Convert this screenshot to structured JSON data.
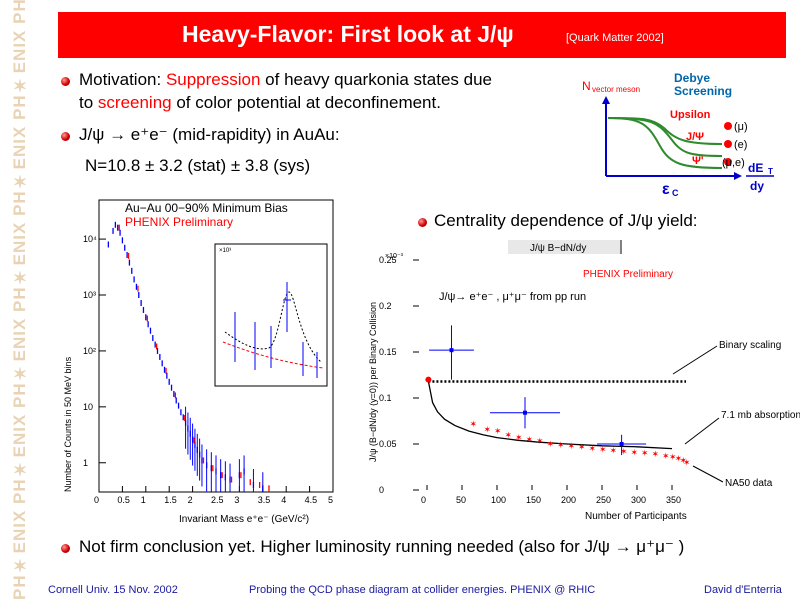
{
  "watermark": "PH✶ENIX PH✶ENIX PH✶ENIX PH✶ENIX PH✶ENIX PH✶ENIX PH✶ENIX",
  "title": "Heavy-Flavor: First look at J/ψ",
  "title_ref": "[Quark Matter 2002]",
  "bullets": {
    "b1_prefix": "Motivation: ",
    "b1_red1": "Suppression",
    "b1_mid": " of heavy quarkonia states due",
    "b1_line2_pre": "to ",
    "b1_red2": "screening",
    "b1_line2_post": " of color potential at deconfinement.",
    "b2": "J/ψ → e⁺e⁻  (mid-rapidity) in AuAu:",
    "b2_value": "N=10.8 ± 3.2 (stat) ± 3.8 (sys)",
    "b3": "Centrality dependence of J/ψ yield:",
    "b4": "Not firm conclusion yet. Higher luminosity running needed (also for J/ψ → μ⁺μ⁻ )"
  },
  "footer": {
    "left": "Cornell Univ. 15 Nov.  2002",
    "center": "Probing the QCD phase diagram at collider energies. PHENIX @ RHIC",
    "right": "David d'Enterria"
  },
  "debye": {
    "ylabel": "N",
    "ylabel_sub": "vector meson",
    "title1": "Debye",
    "title2": "Screening",
    "curves": [
      {
        "label": "Upsilon",
        "tag": "(μ)"
      },
      {
        "label": "J/Ψ",
        "tag": "(e)"
      },
      {
        "label": "Ψ'",
        "tag": "(μ,e)"
      }
    ],
    "xlabel": "dE",
    "xlabel_sub": "T",
    "xlabel2": "dy",
    "xcrit": "ε",
    "xcrit_sub": "C",
    "accent": "#0000cc",
    "curve_color": "#2e8b2e",
    "marker_color": "#ff0000"
  },
  "chart_data": [
    {
      "type": "scatter",
      "title": "Au−Au 00−90% Minimum Bias",
      "subtitle": "PHENIX Preliminary",
      "xlabel": "Invariant Mass e⁺e⁻ (GeV/c²)",
      "ylabel": "Number of Counts in 50 MeV bins",
      "xlim": [
        0,
        5
      ],
      "ylim_log": [
        0.3,
        50000
      ],
      "x_ticks": [
        "0",
        "0.5",
        "1",
        "1.5",
        "2",
        "2.5",
        "3",
        "3.5",
        "4",
        "4.5",
        "5"
      ],
      "y_ticks": [
        "1",
        "10",
        "10²",
        "10³",
        "10⁴"
      ],
      "series": [
        {
          "color": "#0000ff",
          "x": [
            0.2,
            0.3,
            0.35,
            0.4,
            0.45,
            0.5,
            0.55,
            0.6,
            0.65,
            0.7,
            0.75,
            0.8,
            0.85,
            0.9,
            0.95,
            1.0,
            1.05,
            1.1,
            1.15,
            1.2,
            1.25,
            1.3,
            1.35,
            1.4,
            1.45,
            1.5,
            1.55,
            1.6,
            1.65,
            1.7,
            1.75,
            1.8,
            1.85,
            1.9,
            1.95,
            2.0,
            2.05,
            2.1,
            2.15,
            2.2,
            2.3,
            2.4,
            2.5,
            2.6,
            2.7,
            2.8,
            3.0,
            3.1,
            3.3,
            3.5
          ],
          "y": [
            8000,
            14000,
            18000,
            16000,
            13000,
            9500,
            7000,
            5200,
            3800,
            2700,
            1900,
            1400,
            1000,
            720,
            540,
            400,
            300,
            230,
            170,
            130,
            100,
            78,
            60,
            46,
            36,
            28,
            22,
            17,
            13,
            10.5,
            8,
            6.5,
            5.2,
            4.1,
            3.3,
            2.6,
            2.1,
            1.7,
            1.4,
            1.1,
            0.9,
            0.8,
            0.7,
            0.6,
            0.55,
            0.5,
            0.6,
            0.7,
            0.4,
            0.35
          ]
        },
        {
          "color": "#ff0000",
          "x": [
            0.4,
            0.6,
            0.8,
            1.0,
            1.2,
            1.4,
            1.6,
            1.8,
            2.0,
            2.2,
            2.4,
            2.6,
            2.8,
            3.0,
            3.2,
            3.4,
            3.6
          ],
          "y": [
            16000,
            5000,
            1300,
            380,
            120,
            44,
            16,
            6.3,
            2.5,
            1.1,
            0.8,
            0.6,
            0.5,
            0.6,
            0.45,
            0.4,
            0.35
          ]
        }
      ],
      "inset": {
        "ylabel": "×10³"
      }
    },
    {
      "type": "scatter",
      "legend": "J/ψ B−dN/dy",
      "subtitle": "PHENIX Preliminary",
      "annotation": "J/ψ→ e⁺e⁻ , μ⁺μ⁻ from pp run",
      "xlabel": "Number of Participants",
      "ylabel": "J/ψ  (B−dN/dy (y=0)) per Binary Collision",
      "xlim": [
        -20,
        380
      ],
      "ylim": [
        0,
        0.25
      ],
      "y_exponent": "×10⁻³",
      "x_ticks": [
        "0",
        "50",
        "100",
        "150",
        "200",
        "250",
        "300",
        "350"
      ],
      "y_ticks": [
        "0",
        "0.05",
        "0.1",
        "0.15",
        "0.2",
        "0.25"
      ],
      "labels": [
        "Binary scaling",
        "7.1 mb absorption",
        "NA50 data"
      ],
      "pp_point": {
        "x": 2,
        "y": 0.12
      },
      "data_points": [
        {
          "x": 35,
          "y": 0.152,
          "xerr": 32,
          "yup": 0.027,
          "ydown": 0.032
        },
        {
          "x": 140,
          "y": 0.084,
          "xerr": 50,
          "yup": 0.017,
          "ydown": 0.017
        },
        {
          "x": 278,
          "y": 0.05,
          "xerr": 35,
          "yup": 0.01,
          "ydown": 0.012
        }
      ],
      "binary_scaling_y": 0.118,
      "absorption_curve": {
        "x": [
          2,
          8,
          15,
          25,
          40,
          60,
          80,
          100,
          130,
          160,
          200,
          250,
          300,
          350
        ],
        "y": [
          0.118,
          0.095,
          0.085,
          0.077,
          0.07,
          0.064,
          0.06,
          0.057,
          0.054,
          0.052,
          0.05,
          0.048,
          0.047,
          0.045
        ]
      },
      "na50": {
        "x": [
          65,
          85,
          100,
          115,
          130,
          145,
          160,
          175,
          190,
          205,
          220,
          235,
          250,
          265,
          280,
          295,
          310,
          325,
          340,
          350,
          358,
          365,
          370
        ],
        "y": [
          0.072,
          0.066,
          0.064,
          0.06,
          0.057,
          0.055,
          0.053,
          0.05,
          0.049,
          0.048,
          0.047,
          0.045,
          0.044,
          0.043,
          0.042,
          0.041,
          0.04,
          0.039,
          0.037,
          0.036,
          0.034,
          0.032,
          0.03
        ]
      }
    }
  ]
}
